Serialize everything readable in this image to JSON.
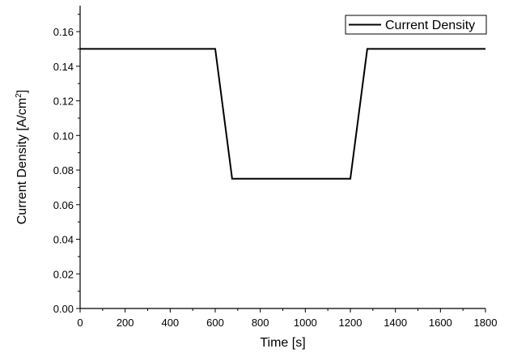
{
  "chart_data": {
    "type": "line",
    "title": "",
    "xlabel": "Time [s]",
    "ylabel_main": "Current Density [A/cm",
    "ylabel_sup": "2",
    "ylabel_end": "]",
    "xlim": [
      0,
      1800
    ],
    "ylim": [
      0,
      0.175
    ],
    "xticks": [
      0,
      200,
      400,
      600,
      800,
      1000,
      1200,
      1400,
      1600,
      1800
    ],
    "xtick_labels": [
      "0",
      "200",
      "400",
      "600",
      "800",
      "1000",
      "1200",
      "1400",
      "1600",
      "1800"
    ],
    "yticks": [
      0,
      0.02,
      0.04,
      0.06,
      0.08,
      0.1,
      0.12,
      0.14,
      0.16
    ],
    "ytick_labels": [
      "0.00",
      "0.02",
      "0.04",
      "0.06",
      "0.08",
      "0.10",
      "0.12",
      "0.14",
      "0.16"
    ],
    "grid": false,
    "legend_position": "top-right",
    "series": [
      {
        "name": "Current Density",
        "color": "#000000",
        "x": [
          0,
          600,
          675,
          1200,
          1275,
          1800
        ],
        "y": [
          0.15,
          0.15,
          0.075,
          0.075,
          0.15,
          0.15
        ]
      }
    ]
  }
}
